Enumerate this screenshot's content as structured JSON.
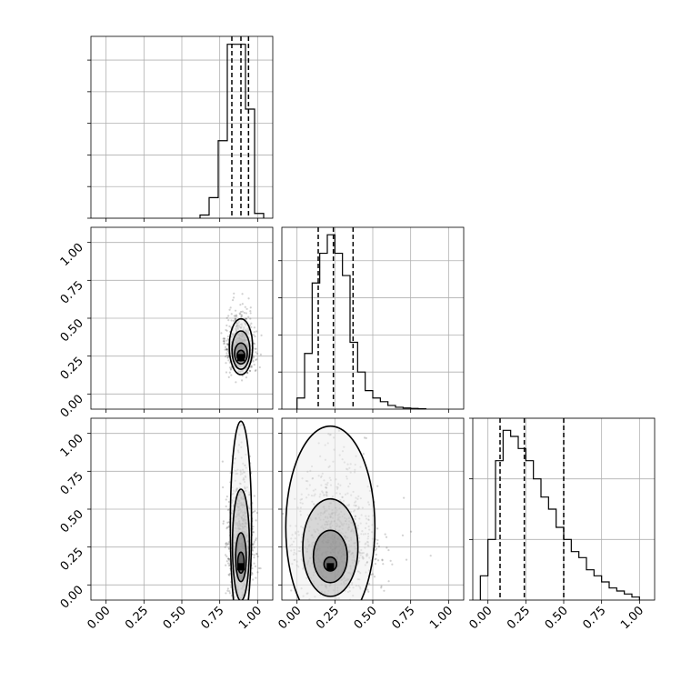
{
  "chart_data": {
    "type": "corner",
    "grid": true,
    "axis_range": [
      -0.1,
      1.1
    ],
    "tick_values": [
      0.0,
      0.25,
      0.5,
      0.75,
      1.0
    ],
    "tick_labels": [
      "0.00",
      "0.25",
      "0.50",
      "0.75",
      "1.00"
    ],
    "parameters": [
      {
        "hist": {
          "edges": [
            0.62,
            0.68,
            0.74,
            0.8,
            0.86,
            0.92,
            0.98,
            1.04
          ],
          "counts": [
            2,
            13,
            49,
            110,
            110,
            69,
            3
          ],
          "ymax": 115,
          "ticks": [
            0,
            20,
            40,
            60,
            80,
            100
          ]
        },
        "quantiles": [
          0.83,
          0.89,
          0.94
        ]
      },
      {
        "hist": {
          "edges": [
            0.0,
            0.05,
            0.1,
            0.15,
            0.2,
            0.25,
            0.3,
            0.35,
            0.4,
            0.45,
            0.5,
            0.55,
            0.6,
            0.65,
            0.7,
            0.75,
            0.8,
            0.85
          ],
          "counts": [
            3,
            15,
            34,
            42,
            47,
            42,
            36,
            18,
            10,
            5,
            3,
            2,
            1,
            0.5,
            0.3,
            0.2,
            0.1
          ],
          "ymax": 49,
          "ticks": [
            0,
            10,
            20,
            30,
            40
          ]
        },
        "quantiles": [
          0.14,
          0.24,
          0.37
        ]
      },
      {
        "hist": {
          "edges": [
            -0.05,
            0.0,
            0.05,
            0.1,
            0.15,
            0.2,
            0.25,
            0.3,
            0.35,
            0.4,
            0.45,
            0.5,
            0.55,
            0.6,
            0.65,
            0.7,
            0.75,
            0.8,
            0.85,
            0.9,
            0.95,
            1.0
          ],
          "counts": [
            4,
            10,
            23,
            28,
            27,
            25,
            23,
            20,
            17,
            15,
            12,
            10,
            8,
            7,
            5,
            4,
            3,
            2,
            1.5,
            1,
            0.5
          ],
          "ymax": 30,
          "ticks": [
            0,
            10,
            20,
            30
          ]
        },
        "quantiles": [
          0.08,
          0.24,
          0.5
        ]
      }
    ],
    "pairs": [
      {
        "row": 1,
        "col": 0,
        "center": [
          0.89,
          0.24
        ],
        "spread": [
          0.045,
          0.11
        ],
        "contours": [
          [
            0.018,
            0.03
          ],
          [
            0.03,
            0.06
          ],
          [
            0.042,
            0.11
          ],
          [
            0.055,
            0.16
          ]
        ]
      },
      {
        "row": 2,
        "col": 0,
        "center": [
          0.89,
          0.12
        ],
        "spread": [
          0.045,
          0.25
        ],
        "contours": [
          [
            0.015,
            0.06
          ],
          [
            0.025,
            0.14
          ],
          [
            0.04,
            0.32
          ],
          [
            0.05,
            0.6
          ]
        ]
      },
      {
        "row": 2,
        "col": 1,
        "center": [
          0.22,
          0.12
        ],
        "spread": [
          0.12,
          0.25
        ],
        "contours": [
          [
            0.03,
            0.04
          ],
          [
            0.08,
            0.15
          ],
          [
            0.13,
            0.28
          ],
          [
            0.21,
            0.58
          ]
        ]
      }
    ]
  }
}
